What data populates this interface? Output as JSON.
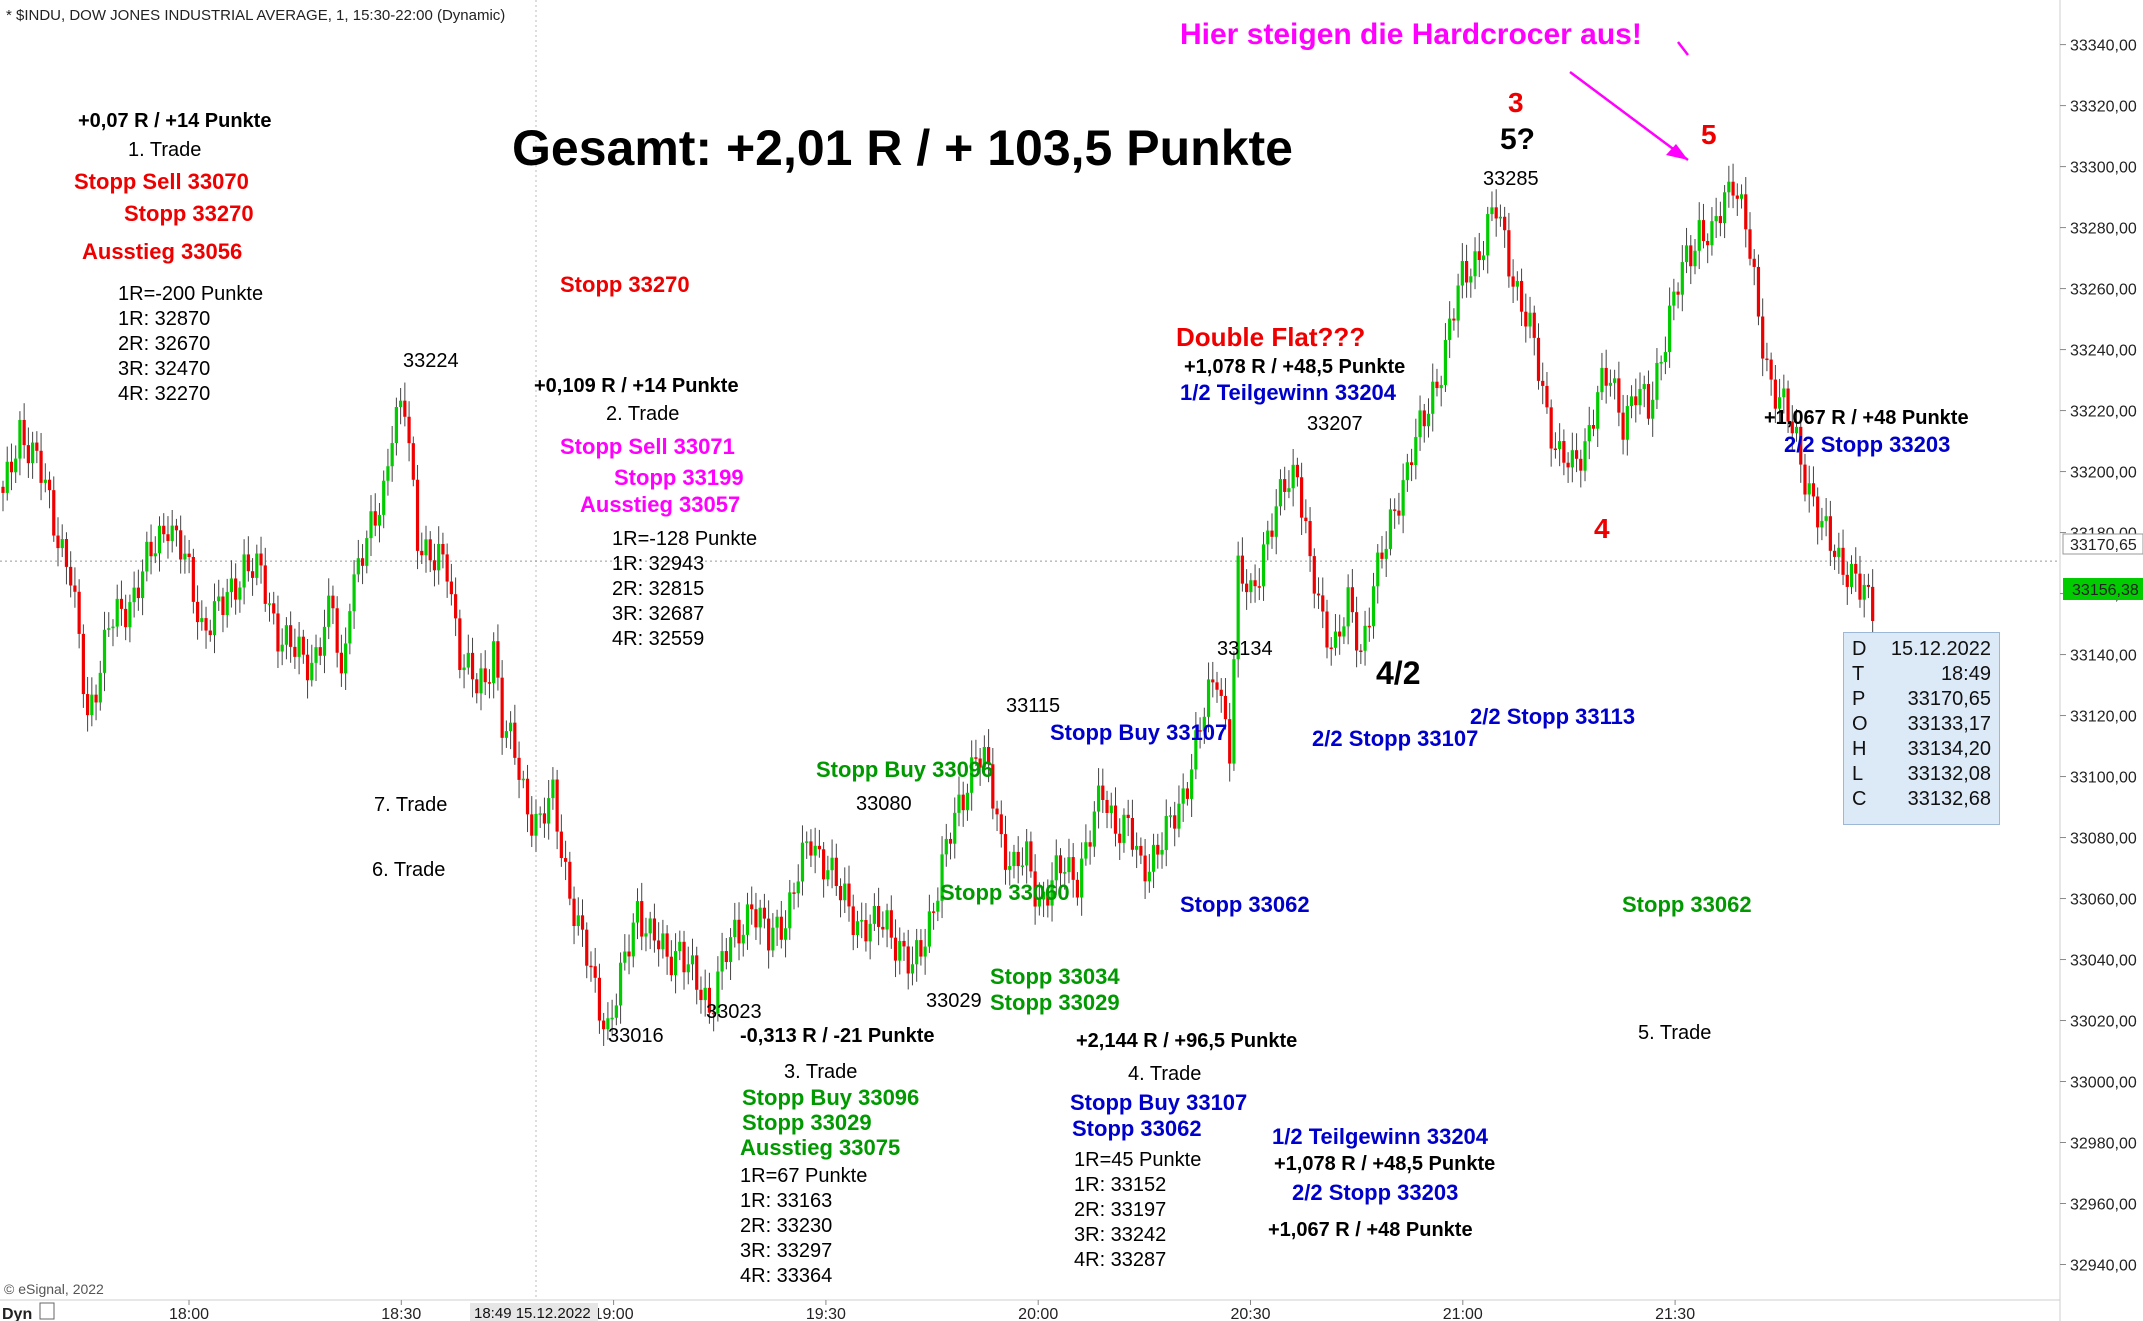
{
  "header": {
    "symbol_line": "* $INDU, DOW JONES INDUSTRIAL AVERAGE, 1, 15:30-22:00 (Dynamic)",
    "watermark": "© eSignal, 2022",
    "footer_tag": "Dyn",
    "cursor_time": "18:49 15.12.2022"
  },
  "chart_data": {
    "type": "candlestick",
    "title": "Gesamt: +2,01 R / + 103,5 Punkte",
    "x_ticks": [
      "18:00",
      "18:30",
      "19:00",
      "19:30",
      "20:00",
      "20:30",
      "21:00",
      "21:30"
    ],
    "y_ticks": [
      33340,
      33320,
      33300,
      33280,
      33260,
      33240,
      33220,
      33200,
      33180,
      33160,
      33140,
      33120,
      33100,
      33080,
      33060,
      33040,
      33020,
      33000,
      32980,
      32960,
      32940
    ],
    "y_tick_labels": [
      "33340,00",
      "33320,00",
      "33300,00",
      "33280,00",
      "33260,00",
      "33240,00",
      "33220,00",
      "33200,00",
      "33180,00",
      "33160,00",
      "33140,00",
      "33120,00",
      "33100,00",
      "33080,00",
      "33060,00",
      "33040,00",
      "33020,00",
      "33000,00",
      "32980,00",
      "32960,00",
      "32940,00"
    ],
    "ylim": [
      32930,
      33352
    ],
    "crosshair_price": "33170,65",
    "last_price": "33156,38",
    "series_colors": {
      "up": "#00cc00",
      "down": "#ee0000"
    },
    "path_points": [
      [
        0,
        33190
      ],
      [
        4,
        33215
      ],
      [
        10,
        33195
      ],
      [
        16,
        33165
      ],
      [
        20,
        33120
      ],
      [
        25,
        33148
      ],
      [
        30,
        33158
      ],
      [
        35,
        33172
      ],
      [
        39,
        33185
      ],
      [
        43,
        33170
      ],
      [
        47,
        33150
      ],
      [
        52,
        33155
      ],
      [
        57,
        33170
      ],
      [
        61,
        33165
      ],
      [
        65,
        33148
      ],
      [
        69,
        33140
      ],
      [
        73,
        33138
      ],
      [
        78,
        33155
      ],
      [
        80,
        33130
      ],
      [
        82,
        33162
      ],
      [
        86,
        33175
      ],
      [
        90,
        33195
      ],
      [
        92,
        33215
      ],
      [
        95,
        33220
      ],
      [
        98,
        33180
      ],
      [
        102,
        33170
      ],
      [
        105,
        33168
      ],
      [
        108,
        33142
      ],
      [
        112,
        33128
      ],
      [
        114,
        33130
      ],
      [
        116,
        33145
      ],
      [
        118,
        33118
      ],
      [
        121,
        33106
      ],
      [
        124,
        33090
      ],
      [
        127,
        33085
      ],
      [
        130,
        33092
      ],
      [
        133,
        33070
      ],
      [
        136,
        33050
      ],
      [
        140,
        33030
      ],
      [
        143,
        33018
      ],
      [
        146,
        33032
      ],
      [
        150,
        33058
      ],
      [
        153,
        33048
      ],
      [
        157,
        33040
      ],
      [
        160,
        33045
      ],
      [
        164,
        33030
      ],
      [
        167,
        33025
      ],
      [
        170,
        33040
      ],
      [
        174,
        33048
      ],
      [
        177,
        33060
      ],
      [
        181,
        33045
      ],
      [
        185,
        33055
      ],
      [
        188,
        33068
      ],
      [
        191,
        33078
      ],
      [
        195,
        33072
      ],
      [
        198,
        33060
      ],
      [
        202,
        33053
      ],
      [
        206,
        33050
      ],
      [
        209,
        33052
      ],
      [
        212,
        33045
      ],
      [
        215,
        33035
      ],
      [
        218,
        33048
      ],
      [
        221,
        33065
      ],
      [
        224,
        33080
      ],
      [
        227,
        33095
      ],
      [
        230,
        33108
      ],
      [
        233,
        33100
      ],
      [
        236,
        33080
      ],
      [
        239,
        33070
      ],
      [
        242,
        33072
      ],
      [
        245,
        33060
      ],
      [
        248,
        33065
      ],
      [
        251,
        33070
      ],
      [
        254,
        33068
      ],
      [
        257,
        33080
      ],
      [
        260,
        33095
      ],
      [
        263,
        33085
      ],
      [
        266,
        33082
      ],
      [
        269,
        33070
      ],
      [
        272,
        33075
      ],
      [
        275,
        33080
      ],
      [
        278,
        33090
      ],
      [
        282,
        33110
      ],
      [
        285,
        33125
      ],
      [
        287,
        33135
      ],
      [
        290,
        33110
      ],
      [
        292,
        33165
      ],
      [
        295,
        33160
      ],
      [
        298,
        33175
      ],
      [
        301,
        33185
      ],
      [
        303,
        33196
      ],
      [
        306,
        33202
      ],
      [
        309,
        33168
      ],
      [
        312,
        33150
      ],
      [
        315,
        33145
      ],
      [
        318,
        33155
      ],
      [
        321,
        33140
      ],
      [
        324,
        33165
      ],
      [
        327,
        33175
      ],
      [
        330,
        33192
      ],
      [
        333,
        33208
      ],
      [
        336,
        33215
      ],
      [
        339,
        33230
      ],
      [
        342,
        33248
      ],
      [
        345,
        33262
      ],
      [
        348,
        33270
      ],
      [
        351,
        33280
      ],
      [
        353,
        33285
      ],
      [
        356,
        33270
      ],
      [
        359,
        33255
      ],
      [
        362,
        33240
      ],
      [
        365,
        33220
      ],
      [
        368,
        33205
      ],
      [
        371,
        33200
      ],
      [
        374,
        33210
      ],
      [
        377,
        33225
      ],
      [
        380,
        33230
      ],
      [
        383,
        33218
      ],
      [
        386,
        33225
      ],
      [
        389,
        33220
      ],
      [
        392,
        33240
      ],
      [
        395,
        33255
      ],
      [
        398,
        33270
      ],
      [
        401,
        33280
      ],
      [
        404,
        33275
      ],
      [
        407,
        33290
      ],
      [
        409,
        33298
      ],
      [
        412,
        33280
      ],
      [
        415,
        33250
      ],
      [
        418,
        33230
      ],
      [
        421,
        33220
      ],
      [
        424,
        33210
      ],
      [
        427,
        33195
      ],
      [
        430,
        33180
      ],
      [
        433,
        33175
      ],
      [
        436,
        33168
      ],
      [
        439,
        33160
      ],
      [
        442,
        33157
      ]
    ],
    "annotations": {
      "top_right_note": "Hier steigen die Hardcrocer aus!",
      "t1_result": "+0,07 R / +14 Punkte",
      "t1_title": "1. Trade",
      "t1_stop_sell": "Stopp Sell 33070",
      "t1_stop": "Stopp 33270",
      "t1_exit": "Ausstieg 33056",
      "t1_r_lines": [
        "1R=-200 Punkte",
        "1R: 32870",
        "2R: 32670",
        "3R: 32470",
        "4R: 32270"
      ],
      "stopp_33270_mid": "Stopp 33270",
      "t2_result": "+0,109 R / +14 Punkte",
      "t2_title": "2. Trade",
      "t2_stop_sell": "Stopp Sell 33071",
      "t2_stop": "Stopp 33199",
      "t2_exit": "Ausstieg 33057",
      "t2_r_lines": [
        "1R=-128 Punkte",
        "1R: 32943",
        "2R: 32815",
        "3R: 32687",
        "4R: 32559"
      ],
      "t7_title": "7. Trade",
      "t6_title": "6. Trade",
      "t3_result": "-0,313 R / -21 Punkte",
      "t3_title": "3. Trade",
      "t3_stop_buy": "Stopp Buy 33096",
      "t3_stop": "Stopp 33029",
      "t3_exit": "Ausstieg 33075",
      "t3_r_lines": [
        "1R=67 Punkte",
        "1R: 33163",
        "2R: 33230",
        "3R: 33297",
        "4R: 33364"
      ],
      "stopp_buy_33096_chart": "Stopp Buy 33096",
      "stopp_33060": "Stopp 33060",
      "stopp_33034": "Stopp 33034",
      "stopp_33029_chart": "Stopp 33029",
      "t4_result": "+2,144 R / +96,5 Punkte",
      "t4_title": "4. Trade",
      "t4_stop_buy": "Stopp Buy 33107",
      "t4_stop": "Stopp 33062",
      "t4_r_lines": [
        "1R=45 Punkte",
        "1R: 33152",
        "2R: 33197",
        "3R: 33242",
        "4R: 33287"
      ],
      "t4_partial": "1/2 Teilgewinn 33204",
      "t4_partial_result": "+1,078 R / +48,5 Punkte",
      "t4_second_stop": "2/2 Stopp 33203",
      "t4_second_result": "+1,067 R / +48 Punkte",
      "stopp_buy_33107_chart": "Stopp Buy 33107",
      "stopp_33062_chart": "Stopp 33062",
      "stopp_2_2_33107": "2/2 Stopp 33107",
      "stopp_2_2_33113": "2/2 Stopp 33113",
      "double_flat": "Double Flat???",
      "df_result": "+1,078 R / +48,5 Punkte",
      "df_partial": "1/2 Teilgewinn 33204",
      "right_result": "+1,067 R / +48 Punkte",
      "right_stop": "2/2 Stopp 33203",
      "stopp_33062_right": "Stopp 33062",
      "t5_title": "5. Trade",
      "wave_3": "3",
      "wave_5q": "5?",
      "wave_5": "5",
      "wave_4": "4",
      "wave_4_2": "4/2",
      "price_33224": "33224",
      "price_33016": "33016",
      "price_33023": "33023",
      "price_33080": "33080",
      "price_33029": "33029",
      "price_33115": "33115",
      "price_33134": "33134",
      "price_33207": "33207",
      "price_33285": "33285"
    }
  },
  "data_window": {
    "rows": [
      {
        "key": "D",
        "value": "15.12.2022"
      },
      {
        "key": "T",
        "value": "18:49"
      },
      {
        "key": "P",
        "value": "33170,65"
      },
      {
        "key": "O",
        "value": "33133,17"
      },
      {
        "key": "H",
        "value": "33134,20"
      },
      {
        "key": "L",
        "value": "33132,08"
      },
      {
        "key": "C",
        "value": "33132,68"
      }
    ]
  }
}
